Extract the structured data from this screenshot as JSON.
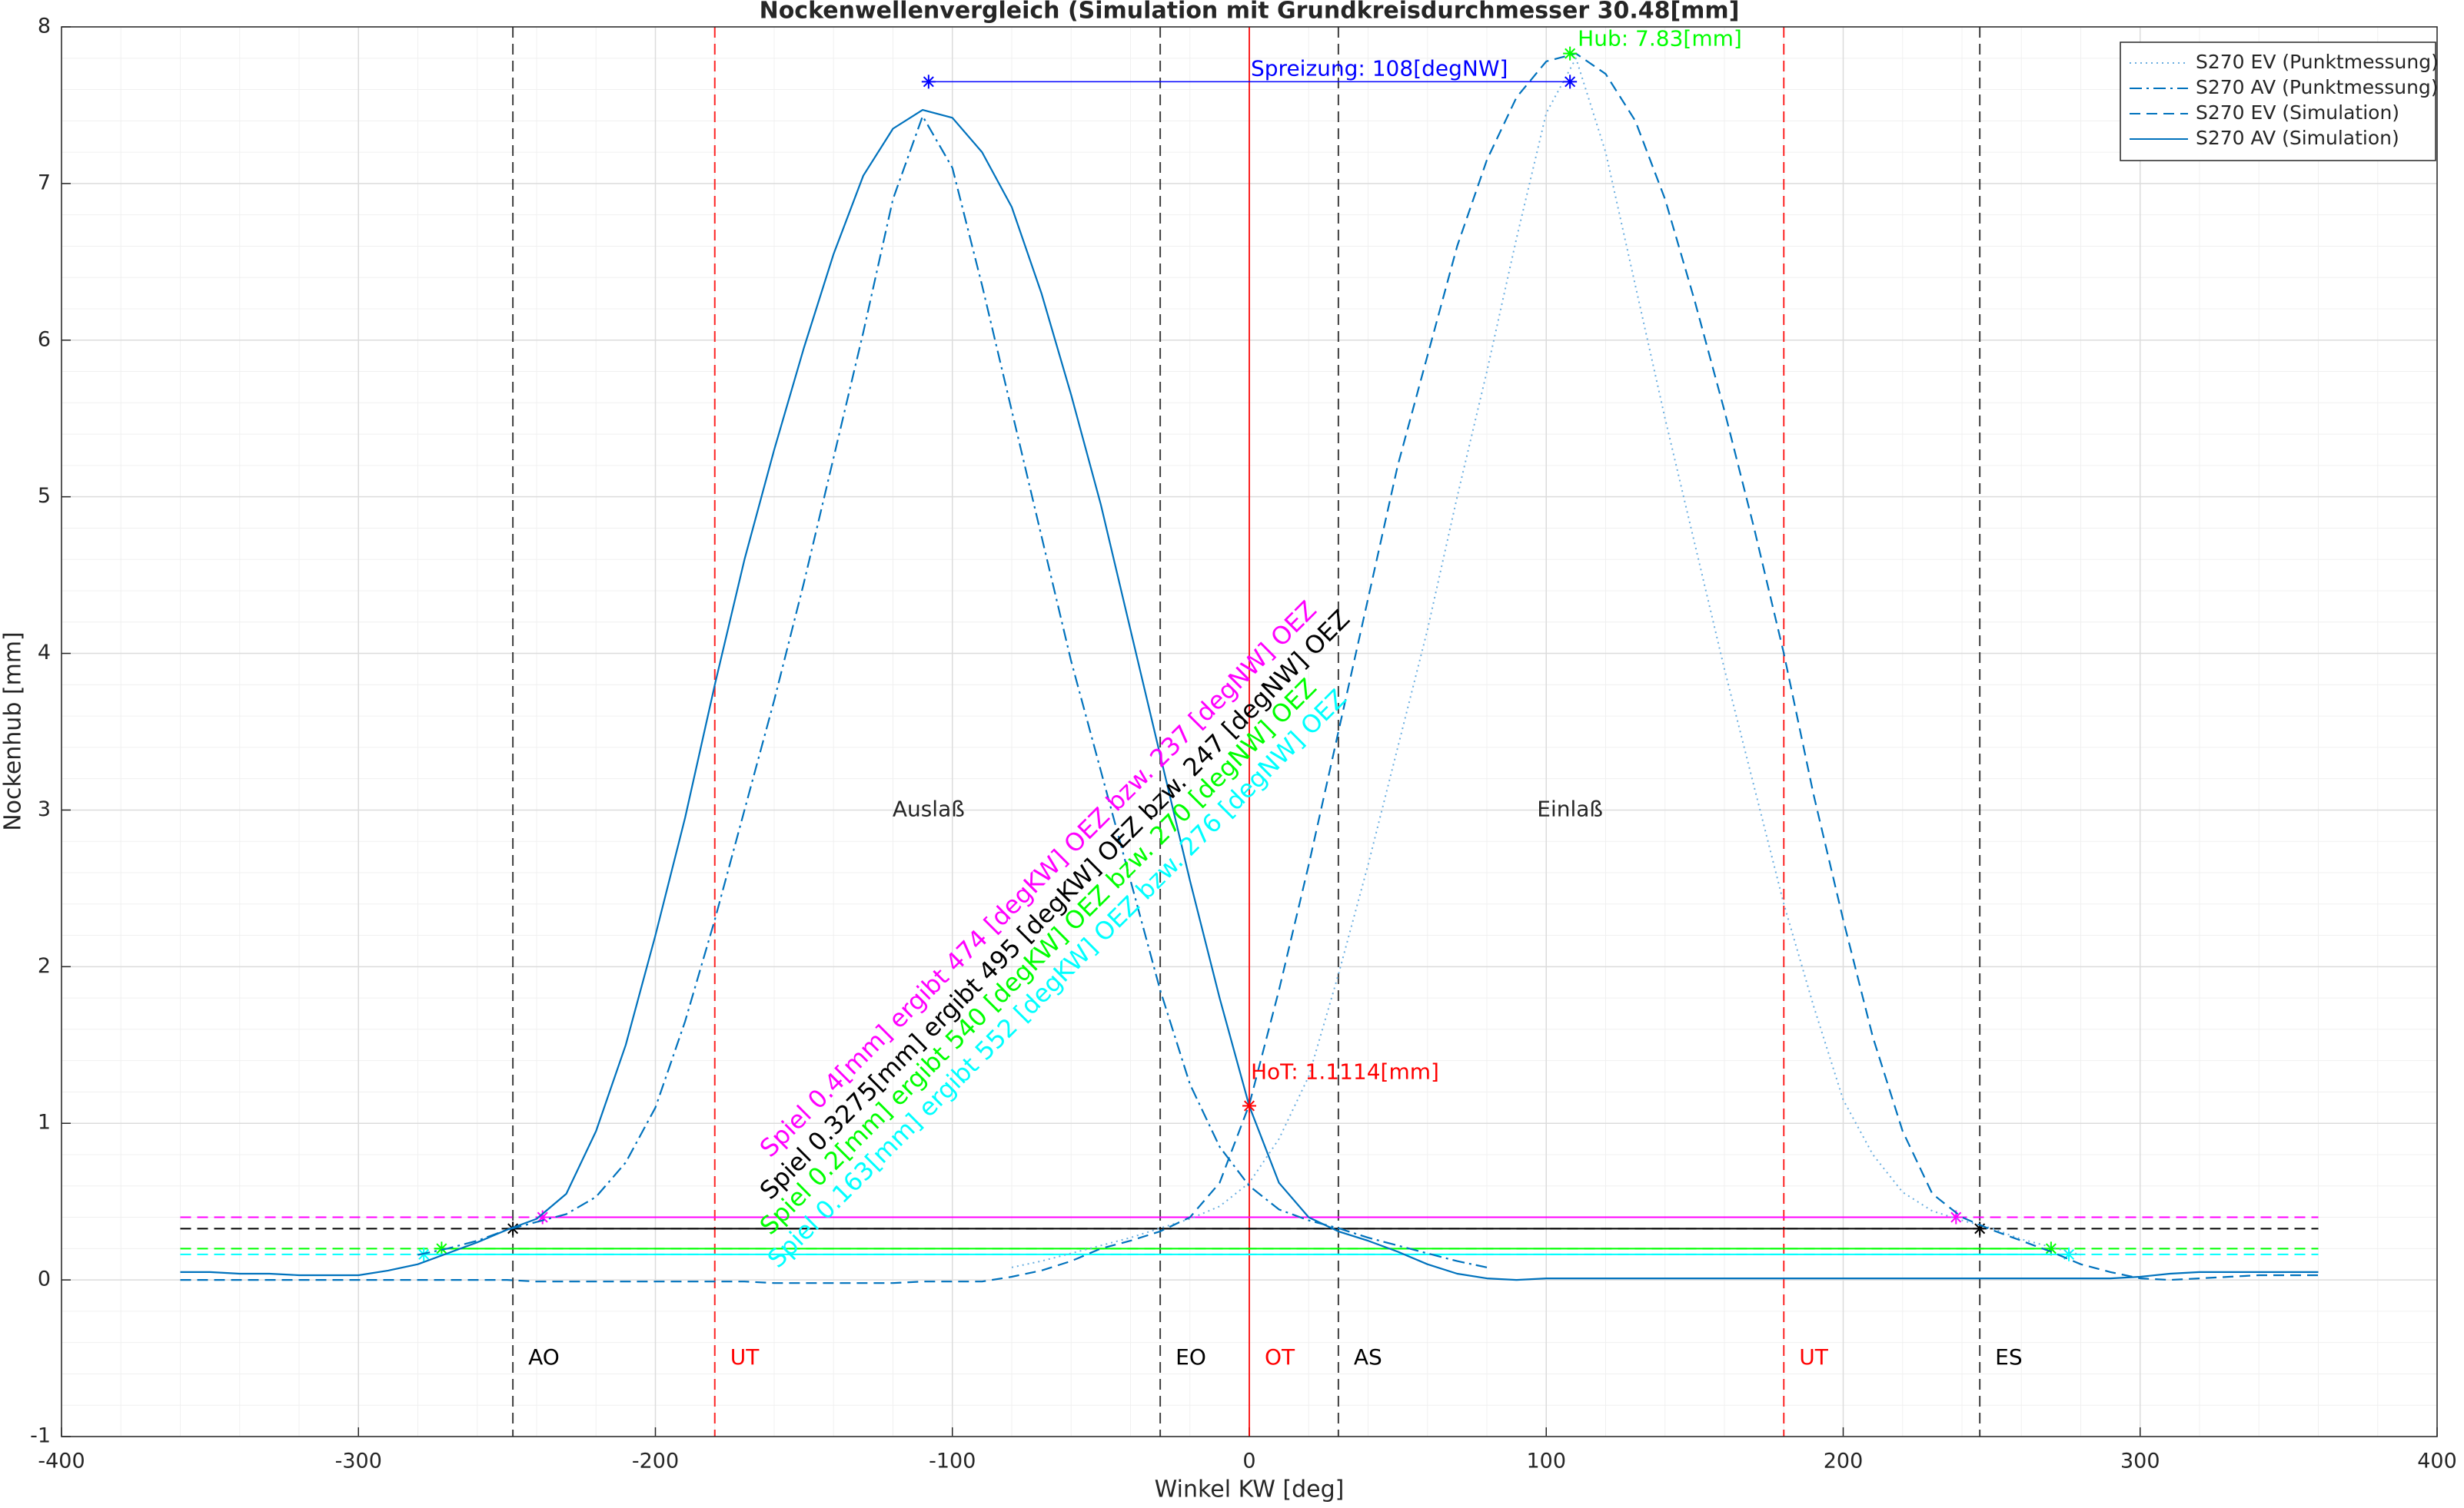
{
  "chart_data": {
    "type": "line",
    "title": "Nockenwellenvergleich (Simulation mit Grundkreisdurchmesser 30.48[mm]",
    "x_label": "Winkel KW [deg]",
    "y_label": "Nockenhub [mm]",
    "xlim": [
      -400,
      400
    ],
    "xticks": [
      -400,
      -300,
      -200,
      -100,
      0,
      100,
      200,
      300,
      400
    ],
    "ylim": [
      -1,
      8
    ],
    "yticks": [
      -1,
      0,
      1,
      2,
      3,
      4,
      5,
      6,
      7,
      8
    ],
    "grid": true,
    "minor_grid": true,
    "legend": "northeast",
    "x": [
      -360,
      -350,
      -340,
      -330,
      -320,
      -310,
      -300,
      -290,
      -280,
      -270,
      -260,
      -250,
      -240,
      -230,
      -220,
      -210,
      -200,
      -190,
      -180,
      -170,
      -160,
      -150,
      -140,
      -130,
      -120,
      -110,
      -100,
      -90,
      -80,
      -70,
      -60,
      -50,
      -40,
      -30,
      -20,
      -10,
      0,
      10,
      20,
      30,
      40,
      50,
      60,
      70,
      80,
      90,
      100,
      110,
      120,
      130,
      140,
      150,
      160,
      170,
      180,
      190,
      200,
      210,
      220,
      230,
      240,
      250,
      260,
      270,
      280,
      290,
      300,
      310,
      320,
      330,
      340,
      350,
      360
    ],
    "series": [
      {
        "name": "S270 EV (Punktmessung)",
        "color": "#6aaee0",
        "style": "dotted",
        "values": [
          null,
          null,
          null,
          null,
          null,
          null,
          null,
          null,
          null,
          null,
          null,
          null,
          null,
          null,
          null,
          null,
          null,
          null,
          null,
          null,
          null,
          null,
          null,
          null,
          null,
          null,
          null,
          null,
          0.08,
          0.12,
          0.17,
          0.22,
          0.27,
          0.33,
          0.39,
          0.47,
          0.62,
          0.9,
          1.3,
          1.95,
          2.65,
          3.4,
          4.15,
          5.0,
          5.8,
          6.65,
          7.45,
          7.8,
          7.2,
          6.35,
          5.5,
          4.7,
          3.9,
          3.15,
          2.4,
          1.75,
          1.15,
          0.8,
          0.56,
          0.44,
          0.38,
          0.33,
          0.26,
          0.21,
          0.16,
          null,
          null,
          null,
          null,
          null,
          null,
          null,
          null
        ]
      },
      {
        "name": "S270 AV (Punktmessung)",
        "color": "#0072bd",
        "style": "dashdot",
        "values": [
          null,
          null,
          null,
          null,
          null,
          null,
          null,
          null,
          0.16,
          0.2,
          0.25,
          0.32,
          0.37,
          0.42,
          0.53,
          0.75,
          1.1,
          1.65,
          2.3,
          3.0,
          3.7,
          4.45,
          5.25,
          6.05,
          6.9,
          7.43,
          7.1,
          6.35,
          5.55,
          4.75,
          3.95,
          3.25,
          2.55,
          1.85,
          1.25,
          0.85,
          0.6,
          0.45,
          0.38,
          0.33,
          0.27,
          0.22,
          0.17,
          0.12,
          0.08,
          null,
          null,
          null,
          null,
          null,
          null,
          null,
          null,
          null,
          null,
          null,
          null,
          null,
          null,
          null,
          null,
          null,
          null,
          null,
          null,
          null,
          null,
          null,
          null,
          null,
          null,
          null,
          null
        ]
      },
      {
        "name": "S270 EV (Simulation)",
        "color": "#0072bd",
        "style": "dashed",
        "values": [
          0.0,
          0.0,
          0.0,
          0.0,
          0.0,
          0.0,
          0.0,
          0.0,
          0.0,
          0.0,
          0.0,
          0.0,
          -0.01,
          -0.01,
          -0.01,
          -0.01,
          -0.01,
          -0.01,
          -0.01,
          -0.01,
          -0.02,
          -0.02,
          -0.02,
          -0.02,
          -0.02,
          -0.01,
          -0.01,
          -0.01,
          0.02,
          0.06,
          0.12,
          0.2,
          0.25,
          0.31,
          0.4,
          0.62,
          1.12,
          1.85,
          2.65,
          3.5,
          4.35,
          5.2,
          5.9,
          6.6,
          7.15,
          7.55,
          7.78,
          7.83,
          7.7,
          7.4,
          6.9,
          6.25,
          5.55,
          4.8,
          4.0,
          3.1,
          2.3,
          1.55,
          0.95,
          0.55,
          0.4,
          0.32,
          0.25,
          0.18,
          0.1,
          0.05,
          0.01,
          0.0,
          0.01,
          0.02,
          0.03,
          0.03,
          0.03
        ]
      },
      {
        "name": "S270 AV (Simulation)",
        "color": "#0072bd",
        "style": "solid",
        "values": [
          0.05,
          0.05,
          0.04,
          0.04,
          0.03,
          0.03,
          0.03,
          0.06,
          0.1,
          0.17,
          0.24,
          0.32,
          0.39,
          0.55,
          0.95,
          1.5,
          2.2,
          2.95,
          3.8,
          4.6,
          5.3,
          5.95,
          6.55,
          7.05,
          7.35,
          7.47,
          7.42,
          7.2,
          6.85,
          6.3,
          5.65,
          4.95,
          4.15,
          3.35,
          2.55,
          1.8,
          1.11,
          0.62,
          0.4,
          0.31,
          0.25,
          0.18,
          0.1,
          0.04,
          0.01,
          0.0,
          0.01,
          0.01,
          0.01,
          0.01,
          0.01,
          0.01,
          0.01,
          0.01,
          0.01,
          0.01,
          0.01,
          0.01,
          0.01,
          0.01,
          0.01,
          0.01,
          0.01,
          0.01,
          0.01,
          0.01,
          0.02,
          0.04,
          0.05,
          0.05,
          0.05,
          0.05,
          0.05
        ]
      }
    ],
    "thresholds": [
      {
        "value": 0.4,
        "color": "#ff00ff",
        "x": [
          -238,
          238
        ]
      },
      {
        "value": 0.3275,
        "color": "#000000",
        "x": [
          -248,
          246
        ]
      },
      {
        "value": 0.2,
        "color": "#00ff00",
        "x": [
          -272,
          270
        ]
      },
      {
        "value": 0.163,
        "color": "#00ffff",
        "x": [
          -278,
          276
        ]
      }
    ],
    "markers": [
      {
        "x": -248,
        "label": "AO",
        "color": "#000000"
      },
      {
        "x": -180,
        "label": "UT",
        "color": "#ff0000"
      },
      {
        "x": -30,
        "label": "EO",
        "color": "#000000"
      },
      {
        "x": 0,
        "label": "OT",
        "color": "#ff0000"
      },
      {
        "x": 30,
        "label": "AS",
        "color": "#000000"
      },
      {
        "x": 180,
        "label": "UT",
        "color": "#ff0000"
      },
      {
        "x": 246,
        "label": "ES",
        "color": "#000000"
      }
    ],
    "spreizung": {
      "x": [
        -108,
        108
      ],
      "y": 7.65,
      "label": "Spreizung: 108[degNW]",
      "color": "#0000ff"
    },
    "hub": {
      "x": 108,
      "y": 7.83,
      "label": "Hub: 7.83[mm]",
      "color": "#00ff00"
    },
    "hot": {
      "x": 0,
      "y": 1.1114,
      "label": "HoT: 1.1114[mm]",
      "color": "#ff0000"
    },
    "regions": [
      "Auslaß",
      "Einlaß"
    ],
    "notes": [
      {
        "text": "Spiel 0.4[mm] ergibt 474 [degKW] OEZ bzw. 237 [degNW] OEZ",
        "color": "#ff00ff"
      },
      {
        "text": "Spiel 0.3275[mm] ergibt 495 [degKW] OEZ bzw. 247 [degNW] OEZ",
        "color": "#000000"
      },
      {
        "text": "Spiel 0.2[mm] ergibt 540 [degKW] OEZ bzw. 270 [degNW] OEZ",
        "color": "#00ff00"
      },
      {
        "text": "Spiel 0.163[mm] ergibt 552 [degKW] OEZ bzw. 276 [degNW] OEZ",
        "color": "#00ffff"
      }
    ]
  }
}
